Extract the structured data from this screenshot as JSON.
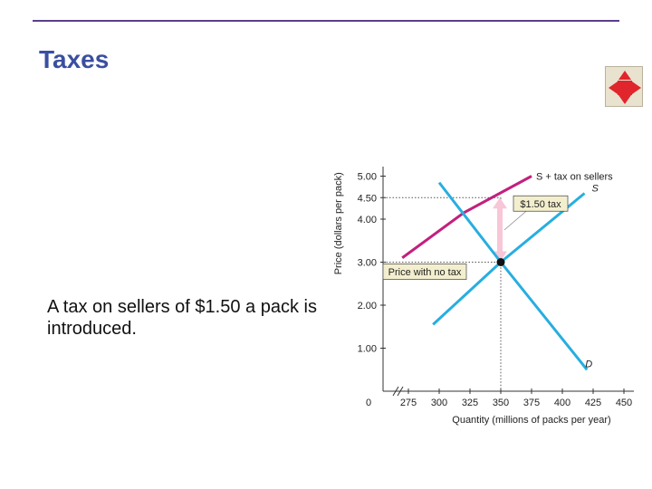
{
  "slide": {
    "title": "Taxes",
    "body": "A tax on sellers of $1.50 a pack is introduced.",
    "nav_icon": "move-arrows-icon"
  },
  "colors": {
    "title": "#3a4fa0",
    "rule": "#5b3f8c",
    "supply": "#27aee0",
    "demand": "#27aee0",
    "taxed_supply": "#c2207e",
    "tax_arrow": "#f7c6d7",
    "nav_icon": "#e0262c"
  },
  "chart_data": {
    "type": "line",
    "title": "",
    "xlabel": "Quantity (millions of packs per year)",
    "ylabel": "Price (dollars per pack)",
    "x_ticks": [
      275,
      300,
      325,
      350,
      375,
      400,
      425,
      450
    ],
    "x_tick_labels": [
      "275",
      "300",
      "325",
      "350",
      "375",
      "400",
      "425",
      "450"
    ],
    "x_origin_label": "0",
    "y_ticks": [
      1.0,
      2.0,
      3.0,
      4.0,
      4.5,
      5.0
    ],
    "y_tick_labels": [
      "1.00",
      "2.00",
      "3.00",
      "4.00",
      "4.50",
      "5.00"
    ],
    "xlim": [
      260,
      455
    ],
    "ylim": [
      0,
      5.3
    ],
    "axis_break": true,
    "series": [
      {
        "key": "supply_tax",
        "name": "S + tax on sellers",
        "points": [
          [
            270,
            3.1
          ],
          [
            320,
            4.15
          ],
          [
            375,
            5.0
          ]
        ]
      },
      {
        "key": "supply",
        "name": "S",
        "points": [
          [
            295,
            1.55
          ],
          [
            350,
            3.0
          ],
          [
            418,
            4.6
          ]
        ]
      },
      {
        "key": "demand",
        "name": "D",
        "points": [
          [
            300,
            4.85
          ],
          [
            350,
            3.0
          ],
          [
            420,
            0.5
          ]
        ]
      }
    ],
    "equilibrium": {
      "x": 350,
      "y": 3.0
    },
    "tax_amount": {
      "from": 3.0,
      "to": 4.5,
      "x": 350
    },
    "guides": {
      "x": 350,
      "y_levels": [
        3.0,
        4.5
      ]
    },
    "annotations": [
      {
        "key": "tax",
        "text": "$1.50 tax"
      },
      {
        "key": "no_tax",
        "text": "Price with no tax"
      }
    ]
  }
}
